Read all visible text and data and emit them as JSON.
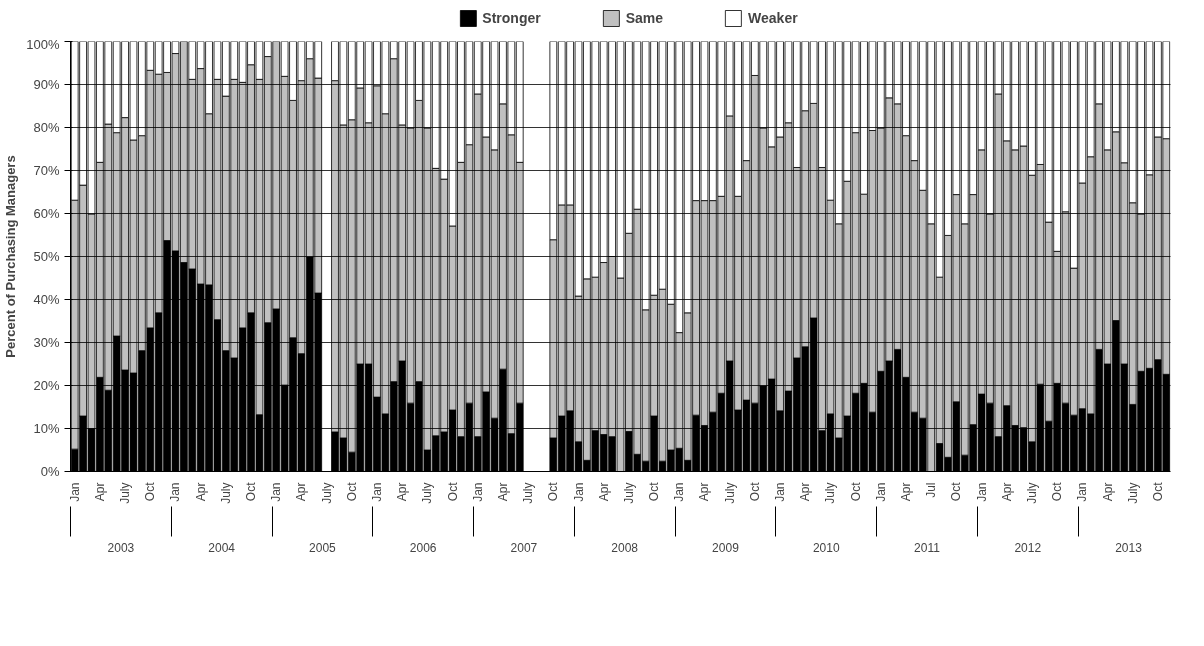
{
  "chart_data": {
    "type": "bar",
    "stacked": true,
    "ylabel": "Percent of Purchasing Managers",
    "categories": [
      "Jan",
      null,
      null,
      "Apr",
      null,
      null,
      "July",
      null,
      null,
      "Oct",
      null,
      null,
      "Jan",
      null,
      null,
      "Apr",
      null,
      null,
      "July",
      null,
      null,
      "Oct",
      null,
      null,
      "Jan",
      null,
      null,
      "Apr",
      null,
      null,
      "July",
      null,
      null,
      "Oct",
      null,
      null,
      "Jan",
      null,
      null,
      "Apr",
      null,
      null,
      "July",
      null,
      null,
      "Oct",
      null,
      null,
      "Jan",
      null,
      null,
      "Apr",
      null,
      null,
      "July",
      null,
      null,
      "Oct",
      null,
      null,
      "Jan",
      null,
      null,
      "Apr",
      null,
      null,
      "July",
      null,
      null,
      "Oct",
      null,
      null,
      "Jan",
      null,
      null,
      "Apr",
      null,
      null,
      "July",
      null,
      null,
      "Oct",
      null,
      null,
      "Jan",
      null,
      null,
      "Apr",
      null,
      null,
      "July",
      null,
      null,
      "Oct",
      null,
      null,
      "Jan",
      null,
      null,
      "Apr",
      null,
      null,
      "Jul",
      null,
      null,
      "Oct",
      null,
      null,
      "Jan",
      null,
      null,
      "Apr",
      null,
      null,
      "July",
      null,
      null,
      "Oct",
      null,
      null,
      "Jan",
      null,
      null,
      "Apr",
      null,
      null,
      "July",
      null,
      null,
      "Oct",
      null
    ],
    "series": [
      {
        "name": "Stronger",
        "color": "#000000",
        "values": [
          5.2,
          12.9,
          10.0,
          21.9,
          18.9,
          31.5,
          23.6,
          22.9,
          28.1,
          33.4,
          36.9,
          53.7,
          51.3,
          48.6,
          47.1,
          43.6,
          43.4,
          35.3,
          28.1,
          26.4,
          33.4,
          36.9,
          13.2,
          34.6,
          37.8,
          20.1,
          31.1,
          27.4,
          49.9,
          41.5,
          null,
          9.2,
          7.8,
          4.5,
          25.0,
          25.0,
          17.3,
          13.4,
          20.9,
          25.7,
          15.9,
          20.9,
          5.0,
          8.3,
          9.2,
          14.3,
          8.1,
          15.9,
          8.1,
          18.5,
          12.4,
          23.8,
          8.8,
          15.9,
          null,
          null,
          null,
          7.8,
          12.9,
          14.1,
          6.9,
          2.6,
          9.5,
          8.6,
          8.1,
          0,
          9.3,
          4.0,
          2.4,
          12.9,
          2.4,
          5.0,
          5.4,
          2.6,
          13.1,
          10.7,
          13.8,
          18.2,
          25.7,
          14.3,
          16.6,
          15.9,
          19.9,
          21.5,
          14.1,
          18.7,
          26.4,
          29.0,
          35.7,
          9.5,
          13.4,
          7.8,
          12.9,
          18.2,
          20.5,
          13.8,
          23.3,
          25.7,
          28.4,
          21.9,
          13.8,
          12.4,
          0,
          6.5,
          3.3,
          16.2,
          3.8,
          10.9,
          18.0,
          15.9,
          8.1,
          15.3,
          10.7,
          10.2,
          6.9,
          20.3,
          11.7,
          20.5,
          15.9,
          13.1,
          14.6,
          13.4,
          28.4,
          25.0,
          35.1,
          25.0,
          15.6,
          23.3,
          24.0,
          26.0,
          22.6
        ]
      },
      {
        "name": "Same",
        "color": "#c0c0c0",
        "values": [
          57.9,
          53.7,
          49.9,
          50.0,
          61.9,
          47.3,
          58.7,
          54.2,
          50.0,
          59.9,
          55.5,
          39.1,
          45.9,
          51.4,
          44.1,
          50.1,
          39.8,
          55.9,
          59.2,
          64.8,
          57.1,
          57.7,
          78.0,
          61.9,
          62.2,
          71.8,
          55.2,
          63.5,
          46.1,
          50.0,
          null,
          81.7,
          72.8,
          77.3,
          64.2,
          56.1,
          72.4,
          69.8,
          75.1,
          54.9,
          64.0,
          65.4,
          74.9,
          62.2,
          58.8,
          42.8,
          63.8,
          60.1,
          79.7,
          59.3,
          62.4,
          61.7,
          69.5,
          56.0,
          null,
          null,
          null,
          46.1,
          49.1,
          47.9,
          33.9,
          42.2,
          35.7,
          40.0,
          41.9,
          45.0,
          46.1,
          57.0,
          35.2,
          28.1,
          40.0,
          33.9,
          26.9,
          34.3,
          49.9,
          52.3,
          49.2,
          45.8,
          57.0,
          49.7,
          55.7,
          76.2,
          60.0,
          54.0,
          63.7,
          62.4,
          44.3,
          54.9,
          49.9,
          61.2,
          49.7,
          49.8,
          54.6,
          60.6,
          44.0,
          65.5,
          56.6,
          61.2,
          57.1,
          56.2,
          58.5,
          53.0,
          57.6,
          38.7,
          51.6,
          48.2,
          53.8,
          53.5,
          56.8,
          44.0,
          79.7,
          61.6,
          64.1,
          65.5,
          62.0,
          51.1,
          46.3,
          30.7,
          44.5,
          34.2,
          52.5,
          59.8,
          57.1,
          49.8,
          43.9,
          46.8,
          46.9,
          36.6,
          45.0,
          51.8,
          54.8
        ]
      },
      {
        "name": "Weaker",
        "color": "#ffffff",
        "values": [
          36.9,
          33.4,
          40.1,
          28.1,
          19.2,
          21.2,
          17.7,
          22.9,
          21.9,
          6.7,
          7.6,
          7.2,
          2.8,
          0,
          8.8,
          6.3,
          16.8,
          8.8,
          12.7,
          8.8,
          9.5,
          5.4,
          8.8,
          3.5,
          0,
          8.1,
          13.7,
          9.1,
          4.0,
          8.5,
          null,
          9.1,
          19.4,
          18.2,
          10.8,
          18.9,
          10.3,
          16.8,
          4.0,
          19.4,
          20.1,
          13.7,
          20.1,
          29.5,
          32.0,
          42.9,
          28.1,
          24.0,
          12.2,
          22.2,
          25.2,
          14.5,
          21.7,
          28.1,
          null,
          null,
          null,
          46.1,
          38.0,
          38.0,
          59.2,
          55.2,
          54.8,
          51.4,
          50.0,
          55.0,
          44.6,
          39.0,
          62.4,
          59.0,
          57.6,
          61.1,
          67.7,
          63.1,
          37.0,
          37.0,
          37.0,
          36.0,
          17.3,
          36.0,
          27.7,
          7.9,
          20.1,
          24.5,
          22.2,
          18.9,
          29.3,
          16.1,
          14.4,
          29.3,
          36.9,
          42.4,
          32.5,
          21.2,
          35.5,
          20.7,
          20.1,
          13.1,
          14.5,
          21.9,
          27.7,
          34.6,
          42.4,
          54.8,
          45.1,
          35.6,
          42.4,
          35.6,
          25.2,
          40.1,
          12.2,
          23.1,
          25.2,
          24.3,
          31.1,
          28.6,
          42.0,
          48.8,
          39.6,
          52.7,
          32.9,
          26.8,
          14.5,
          25.2,
          21.0,
          28.2,
          37.5,
          40.1,
          31.0,
          22.2,
          22.6
        ]
      }
    ],
    "ylim": [
      0,
      100
    ],
    "yticks": [
      {
        "value": 0,
        "label": "0%"
      },
      {
        "value": 10,
        "label": "10%"
      },
      {
        "value": 20,
        "label": "20%"
      },
      {
        "value": 30,
        "label": "30%"
      },
      {
        "value": 40,
        "label": "40%"
      },
      {
        "value": 50,
        "label": "50%"
      },
      {
        "value": 60,
        "label": "60%"
      },
      {
        "value": 70,
        "label": "70%"
      },
      {
        "value": 80,
        "label": "80%"
      },
      {
        "value": 90,
        "label": "90%"
      },
      {
        "value": 100,
        "label": "100%"
      }
    ],
    "grid": "y",
    "legend": "top",
    "annotations": [
      "2003",
      "2004",
      "2005",
      "2006",
      "2007",
      "2008",
      "2009",
      "2010",
      "2011",
      "2012",
      "2013"
    ]
  }
}
